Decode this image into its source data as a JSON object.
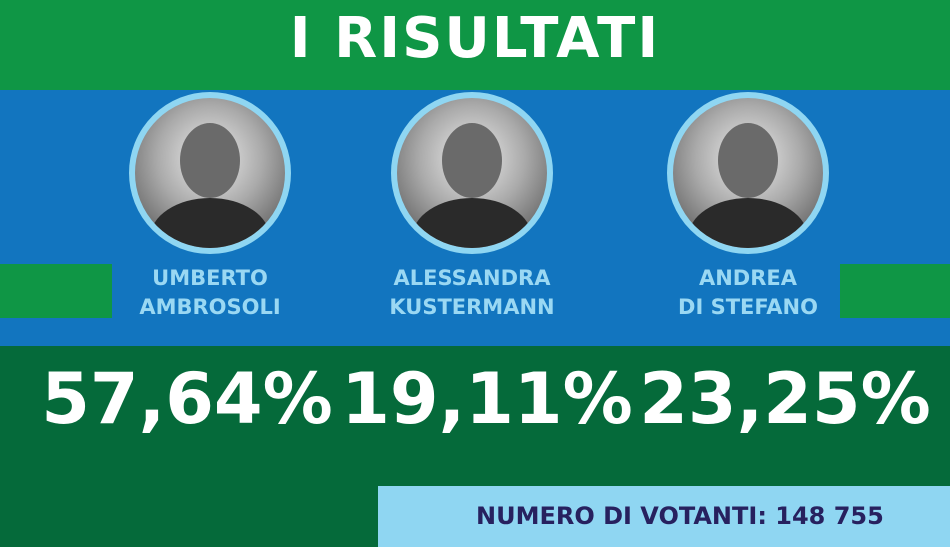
{
  "title": "I RISULTATI",
  "candidates": [
    {
      "first": "UMBERTO",
      "last": "AMBROSOLI",
      "percent": "57,64%"
    },
    {
      "first": "ALESSANDRA",
      "last": "KUSTERMANN",
      "percent": "19,11%"
    },
    {
      "first": "ANDREA",
      "last": "DI STEFANO",
      "percent": "23,25%"
    }
  ],
  "voters": "NUMERO DI VOTANTI: 148 755",
  "colors": {
    "green": "#0f9645",
    "blue": "#1275bf",
    "dark_green": "#056a3a",
    "light_blue": "#8fd6f2",
    "navy": "#27215f"
  }
}
